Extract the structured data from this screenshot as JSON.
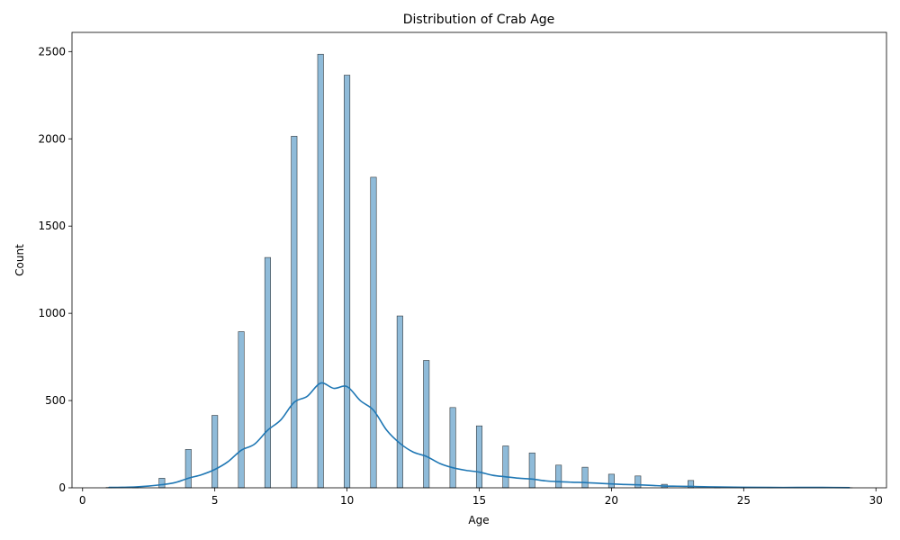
{
  "chart_data": {
    "type": "bar",
    "title": "Distribution of Crab Age",
    "xlabel": "Age",
    "ylabel": "Count",
    "xlim": [
      -0.4,
      30.4
    ],
    "ylim": [
      0,
      2610
    ],
    "x_ticks": [
      0,
      5,
      10,
      15,
      20,
      25,
      30
    ],
    "y_ticks": [
      0,
      500,
      1000,
      1500,
      2000,
      2500
    ],
    "grid": false,
    "legend": "none",
    "series": [
      {
        "kind": "histogram",
        "bar_color": "#1f77b4",
        "x": [
          1,
          2,
          3,
          4,
          5,
          6,
          7,
          8,
          9,
          10,
          11,
          12,
          13,
          14,
          15,
          16,
          17,
          18,
          19,
          20,
          21,
          22,
          23,
          24,
          25,
          26,
          27,
          28,
          29
        ],
        "values": [
          2,
          3,
          55,
          220,
          415,
          895,
          1320,
          2015,
          2485,
          2365,
          1780,
          985,
          730,
          460,
          355,
          240,
          200,
          130,
          118,
          78,
          68,
          20,
          42,
          5,
          3,
          2,
          1,
          2,
          1
        ]
      },
      {
        "kind": "kde",
        "line_color": "#1f77b4",
        "x": [
          1,
          1.5,
          2,
          2.5,
          3,
          3.5,
          4,
          4.5,
          5,
          5.5,
          6,
          6.5,
          7,
          7.5,
          8,
          8.5,
          9,
          9.5,
          10,
          10.5,
          11,
          11.5,
          12,
          12.5,
          13,
          13.5,
          14,
          14.5,
          15,
          15.5,
          16,
          16.5,
          17,
          17.5,
          18,
          18.5,
          19,
          19.5,
          20,
          20.5,
          21,
          21.5,
          22,
          22.5,
          23,
          23.5,
          24,
          25,
          26,
          27,
          28,
          29
        ],
        "values": [
          2,
          3,
          5,
          10,
          18,
          30,
          55,
          75,
          105,
          150,
          215,
          250,
          330,
          390,
          490,
          525,
          600,
          570,
          580,
          500,
          445,
          330,
          255,
          205,
          180,
          140,
          115,
          100,
          90,
          72,
          63,
          55,
          50,
          40,
          35,
          32,
          30,
          26,
          22,
          19,
          17,
          14,
          10,
          9,
          8,
          6,
          5,
          3,
          2,
          2,
          2,
          1
        ]
      }
    ]
  }
}
